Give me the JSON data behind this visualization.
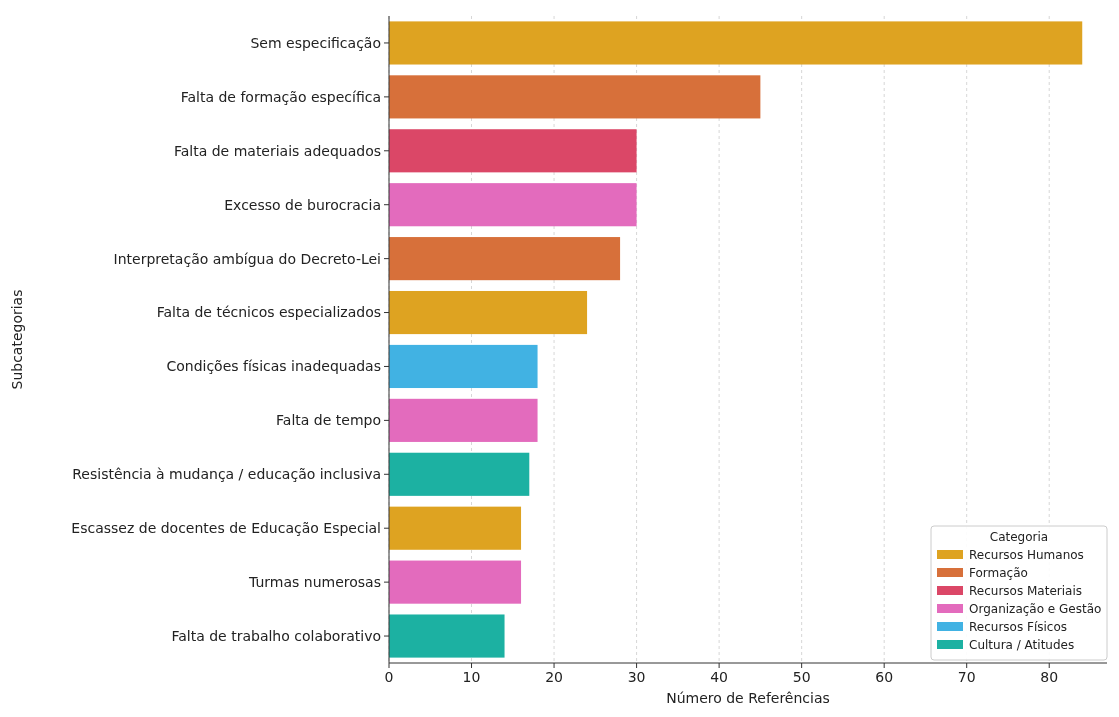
{
  "chart_data": {
    "type": "bar",
    "orientation": "horizontal",
    "xlabel": "Número de Referências",
    "ylabel": "Subcategorias",
    "legend_title": "Categoria",
    "categories": [
      "Sem especificação",
      "Falta de formação específica",
      "Falta de materiais adequados",
      "Excesso de burocracia",
      "Interpretação ambígua do Decreto-Lei",
      "Falta de técnicos especializados",
      "Condições físicas inadequadas",
      "Falta de tempo",
      "Resistência à mudança / educação inclusiva",
      "Escassez de docentes de Educação Especial",
      "Turmas numerosas",
      "Falta de trabalho colaborativo"
    ],
    "series": [
      {
        "name": "Recursos Humanos",
        "color": "#dea321",
        "values": [
          84,
          null,
          null,
          null,
          null,
          24,
          null,
          null,
          null,
          16,
          null,
          null
        ]
      },
      {
        "name": "Formação",
        "color": "#d7703a",
        "values": [
          null,
          45,
          null,
          null,
          28,
          null,
          null,
          null,
          null,
          null,
          null,
          null
        ]
      },
      {
        "name": "Recursos Materiais",
        "color": "#db4767",
        "values": [
          null,
          null,
          30,
          null,
          null,
          null,
          null,
          null,
          null,
          null,
          null,
          null
        ]
      },
      {
        "name": "Organização e Gestão",
        "color": "#e36bbd",
        "values": [
          null,
          null,
          null,
          30,
          null,
          null,
          null,
          18,
          null,
          null,
          16,
          null
        ]
      },
      {
        "name": "Recursos Físicos",
        "color": "#41b2e3",
        "values": [
          null,
          null,
          null,
          null,
          null,
          null,
          18,
          null,
          null,
          null,
          null,
          null
        ]
      },
      {
        "name": "Cultura / Atitudes",
        "color": "#1cb1a2",
        "values": [
          null,
          null,
          null,
          null,
          null,
          null,
          null,
          null,
          17,
          null,
          null,
          14
        ]
      }
    ],
    "xlim": [
      0,
      87
    ],
    "xticks": [
      0,
      10,
      20,
      30,
      40,
      50,
      60,
      70,
      80
    ],
    "grid": "x",
    "legend": "bottom right"
  }
}
